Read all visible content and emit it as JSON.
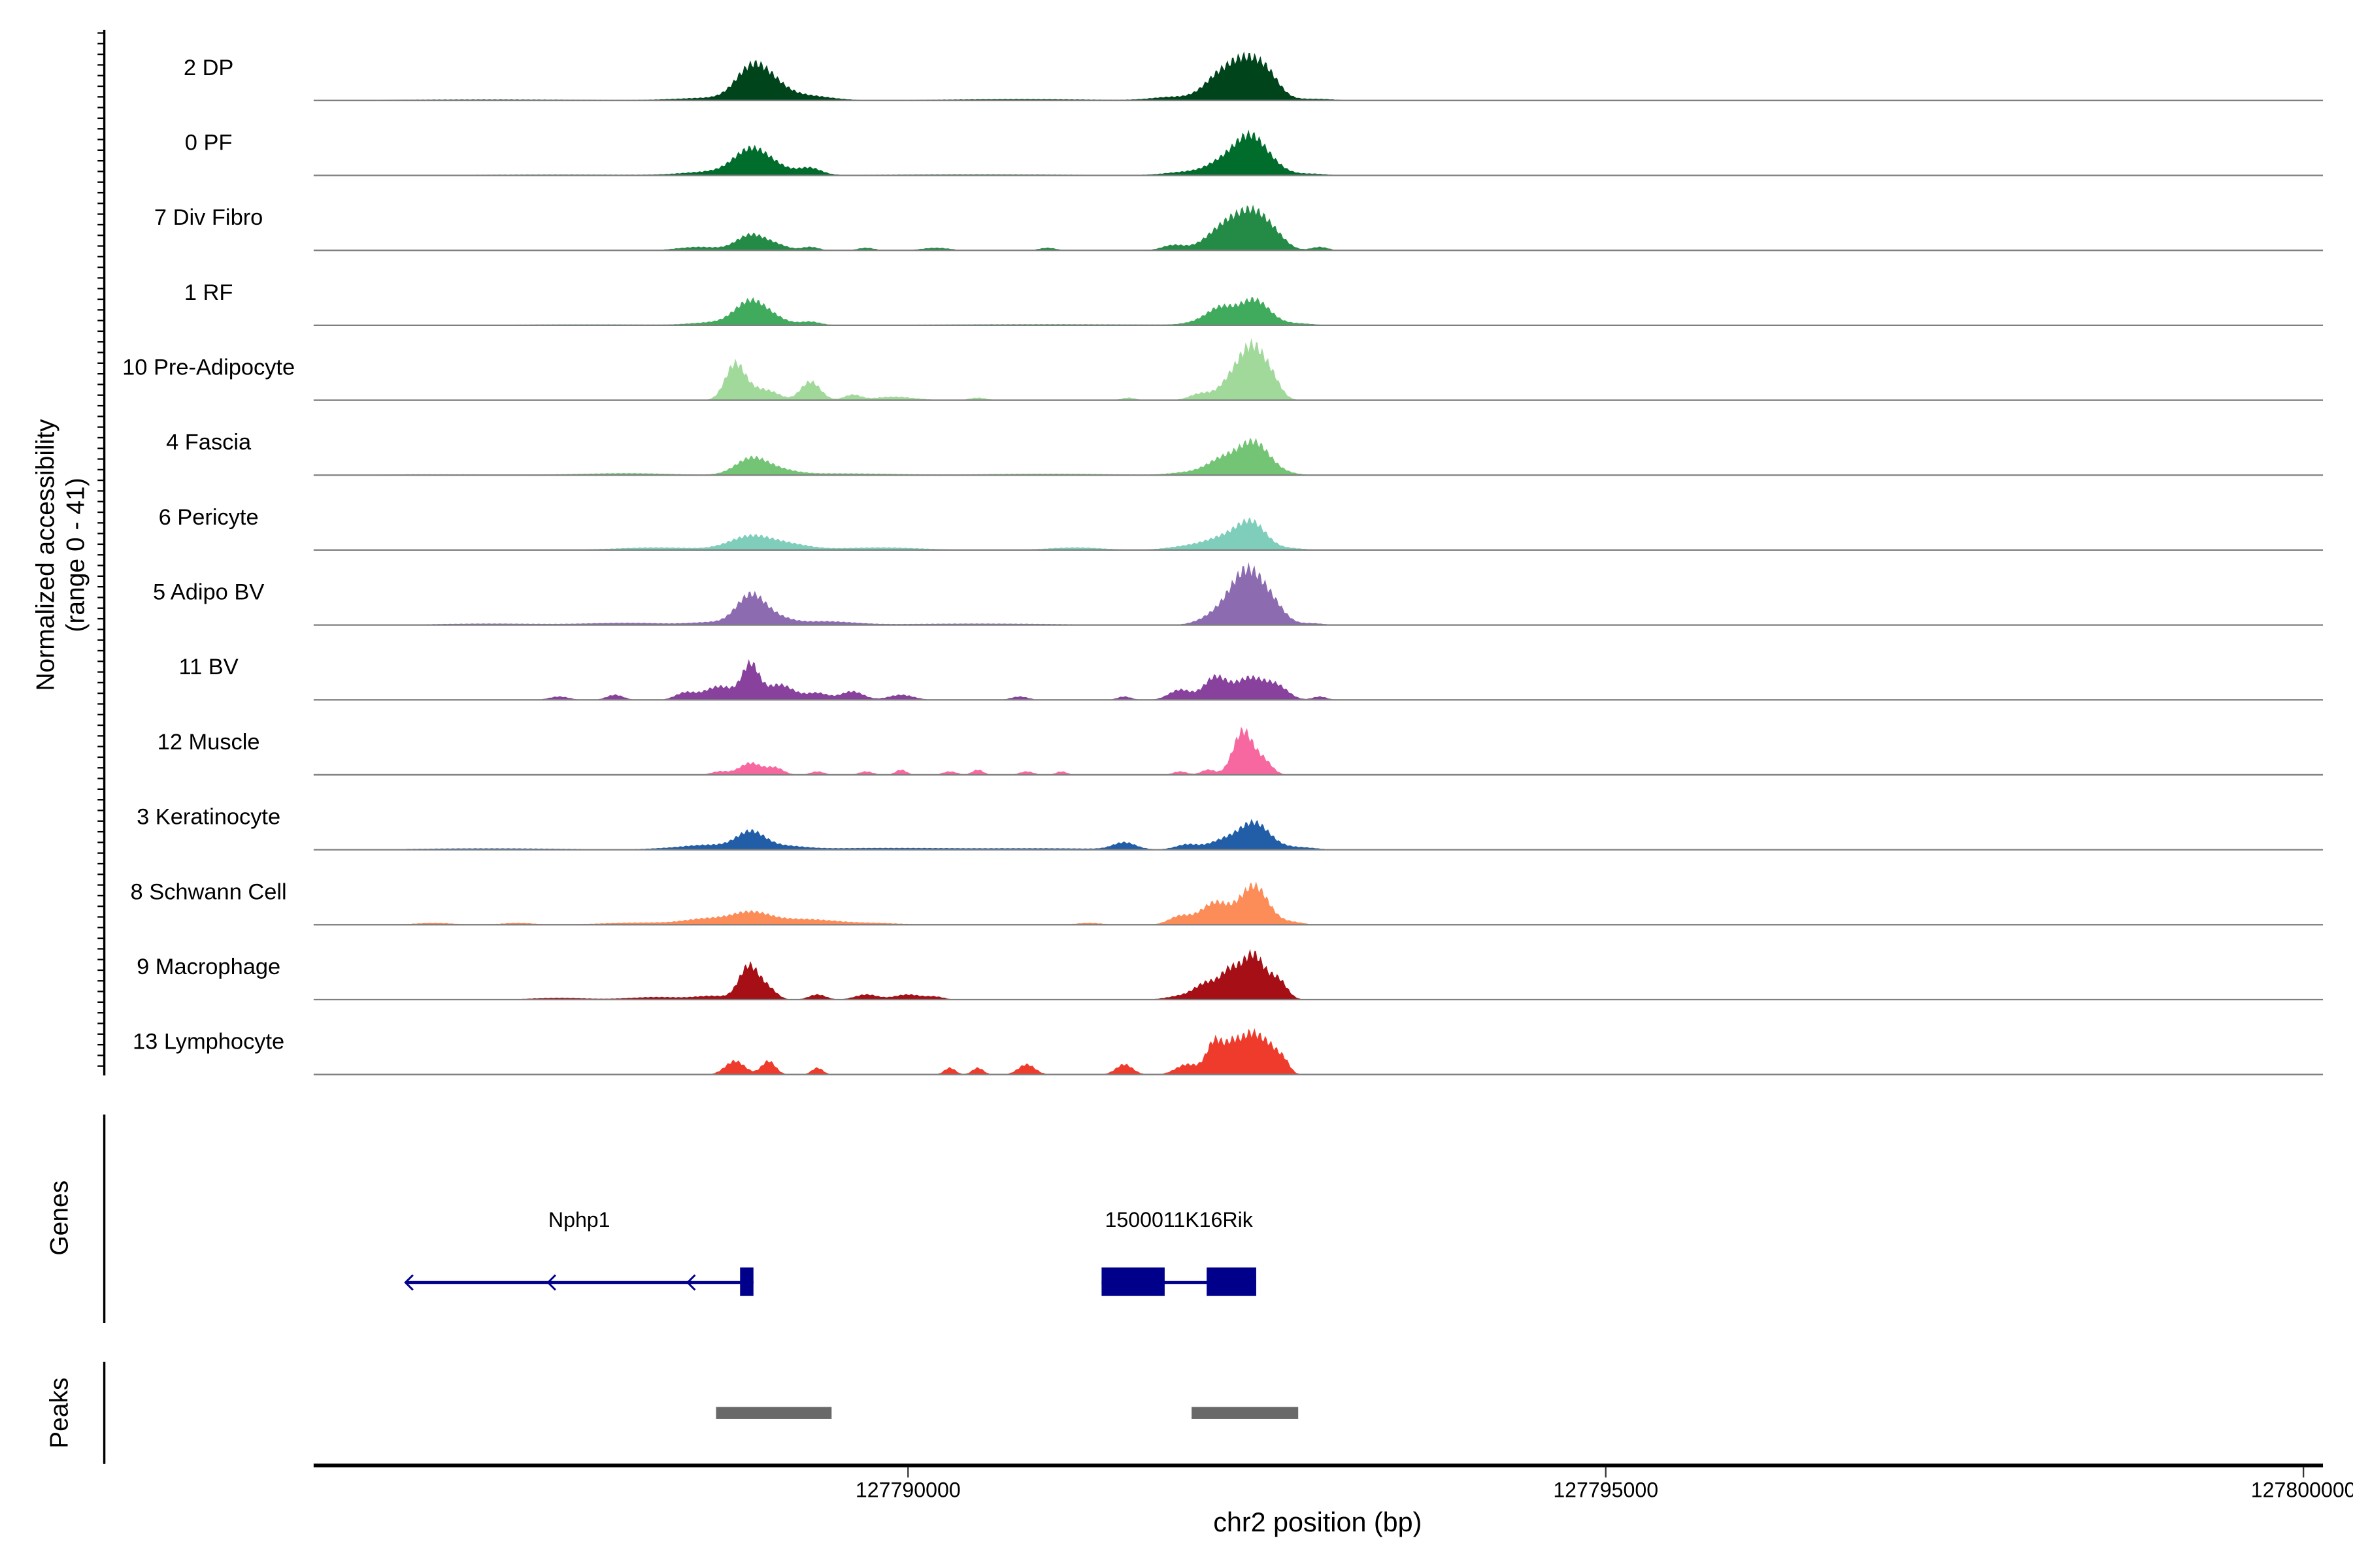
{
  "chart_data": {
    "type": "area",
    "title": "",
    "ylabel_line1": "Normalized accessibility",
    "ylabel_line2": "(range 0 - 41)",
    "xlabel": "chr2 position (bp)",
    "ylim": [
      0,
      41
    ],
    "xlim": [
      127785740,
      127800140
    ],
    "x_ticks": [
      127790000,
      127795000,
      127800000
    ],
    "x_tick_labels": [
      "127790000",
      "127795000",
      "127800000"
    ],
    "grid": false,
    "tracks": [
      {
        "name": "2 DP",
        "color": "#00441b",
        "peaks": [
          [
            127787000,
            0.6,
            800
          ],
          [
            127788600,
            1.5,
            250
          ],
          [
            127788871,
            17,
            110
          ],
          [
            127789020,
            8,
            110
          ],
          [
            127789250,
            3,
            180
          ],
          [
            127790800,
            0.8,
            600
          ],
          [
            127791900,
            2,
            150
          ],
          [
            127792226,
            13,
            110
          ],
          [
            127792420,
            21,
            110
          ],
          [
            127792580,
            12,
            90
          ],
          [
            127792900,
            1,
            150
          ]
        ]
      },
      {
        "name": "0 PF",
        "color": "#006d2c",
        "peaks": [
          [
            127787500,
            0.5,
            800
          ],
          [
            127788600,
            2,
            200
          ],
          [
            127788871,
            14,
            120
          ],
          [
            127789050,
            4,
            120
          ],
          [
            127789300,
            4,
            80
          ],
          [
            127790500,
            0.6,
            800
          ],
          [
            127792000,
            2,
            150
          ],
          [
            127792250,
            7,
            110
          ],
          [
            127792450,
            22,
            110
          ],
          [
            127792620,
            4,
            100
          ],
          [
            127792900,
            1,
            100
          ]
        ]
      },
      {
        "name": "7 Div Fibro",
        "color": "#238b45",
        "peaks": [
          [
            127788500,
            2,
            150
          ],
          [
            127788871,
            9,
            100
          ],
          [
            127789050,
            3,
            90
          ],
          [
            127789300,
            2,
            60
          ],
          [
            127789700,
            1.5,
            60
          ],
          [
            127790200,
            1.5,
            100
          ],
          [
            127791000,
            1.5,
            60
          ],
          [
            127791900,
            3,
            80
          ],
          [
            127792300,
            16,
            140
          ],
          [
            127792500,
            17,
            110
          ],
          [
            127792650,
            4,
            80
          ],
          [
            127792950,
            2,
            60
          ]
        ]
      },
      {
        "name": "1 RF",
        "color": "#41ab5d",
        "peaks": [
          [
            127787700,
            0.5,
            600
          ],
          [
            127788600,
            1.5,
            150
          ],
          [
            127788871,
            14,
            110
          ],
          [
            127789050,
            3,
            100
          ],
          [
            127789300,
            2,
            70
          ],
          [
            127791000,
            0.6,
            900
          ],
          [
            127792100,
            2,
            100
          ],
          [
            127792240,
            9,
            90
          ],
          [
            127792480,
            15,
            110
          ],
          [
            127792800,
            1,
            100
          ]
        ]
      },
      {
        "name": "10 Pre-Adipocyte",
        "color": "#a1d99b",
        "peaks": [
          [
            127788760,
            21,
            70
          ],
          [
            127788930,
            6,
            90
          ],
          [
            127789050,
            2,
            60
          ],
          [
            127789301,
            11,
            70
          ],
          [
            127789600,
            3,
            60
          ],
          [
            127789900,
            2,
            150
          ],
          [
            127790500,
            1.5,
            60
          ],
          [
            127791580,
            1.5,
            50
          ],
          [
            127792100,
            4,
            80
          ],
          [
            127792300,
            8,
            80
          ],
          [
            127792470,
            32,
            100
          ],
          [
            127792620,
            6,
            60
          ]
        ]
      },
      {
        "name": "4 Fascia",
        "color": "#74c476",
        "peaks": [
          [
            127786500,
            0.5,
            900
          ],
          [
            127788000,
            1,
            300
          ],
          [
            127788871,
            9,
            110
          ],
          [
            127789050,
            3,
            130
          ],
          [
            127789500,
            1,
            400
          ],
          [
            127791000,
            0.8,
            500
          ],
          [
            127792000,
            1.5,
            120
          ],
          [
            127792250,
            9,
            110
          ],
          [
            127792480,
            19,
            110
          ],
          [
            127792700,
            1,
            100
          ]
        ]
      },
      {
        "name": "6 Pericyte",
        "color": "#7fcdbb",
        "peaks": [
          [
            127788200,
            1.5,
            300
          ],
          [
            127788871,
            8,
            150
          ],
          [
            127789150,
            3,
            150
          ],
          [
            127789800,
            1.5,
            300
          ],
          [
            127791200,
            1.5,
            200
          ],
          [
            127792000,
            2,
            150
          ],
          [
            127792300,
            8,
            150
          ],
          [
            127792470,
            13,
            100
          ],
          [
            127792750,
            1,
            100
          ]
        ]
      },
      {
        "name": "5 Adipo BV",
        "color": "#8c6bb1",
        "peaks": [
          [
            127787000,
            0.8,
            400
          ],
          [
            127788000,
            1.2,
            300
          ],
          [
            127788600,
            1.5,
            150
          ],
          [
            127788871,
            17,
            100
          ],
          [
            127789050,
            4,
            110
          ],
          [
            127789400,
            2,
            200
          ],
          [
            127790500,
            0.8,
            600
          ],
          [
            127792200,
            5,
            110
          ],
          [
            127792430,
            32,
            120
          ],
          [
            127792620,
            8,
            90
          ],
          [
            127792900,
            1,
            80
          ]
        ]
      },
      {
        "name": "11 BV",
        "color": "#88419d",
        "peaks": [
          [
            127787500,
            2,
            70
          ],
          [
            127787900,
            3,
            60
          ],
          [
            127788400,
            4,
            70
          ],
          [
            127788650,
            8,
            110
          ],
          [
            127788871,
            20,
            60
          ],
          [
            127789080,
            9,
            100
          ],
          [
            127789350,
            4,
            80
          ],
          [
            127789600,
            5,
            80
          ],
          [
            127789950,
            3,
            90
          ],
          [
            127790800,
            2,
            60
          ],
          [
            127791550,
            2,
            50
          ],
          [
            127791950,
            6,
            80
          ],
          [
            127792200,
            13,
            80
          ],
          [
            127792450,
            13,
            110
          ],
          [
            127792650,
            7,
            80
          ],
          [
            127792950,
            2,
            50
          ]
        ]
      },
      {
        "name": "12 Muscle",
        "color": "#f768a1",
        "peaks": [
          [
            127788650,
            2,
            60
          ],
          [
            127788871,
            7,
            80
          ],
          [
            127789050,
            4,
            60
          ],
          [
            127789350,
            2,
            50
          ],
          [
            127789700,
            2,
            50
          ],
          [
            127789950,
            3,
            40
          ],
          [
            127790300,
            2,
            50
          ],
          [
            127790500,
            3,
            40
          ],
          [
            127790850,
            2,
            50
          ],
          [
            127791100,
            2,
            40
          ],
          [
            127791950,
            2,
            50
          ],
          [
            127792150,
            3,
            50
          ],
          [
            127792400,
            26,
            70
          ],
          [
            127792550,
            8,
            60
          ]
        ]
      },
      {
        "name": "3 Keratinocyte",
        "color": "#225ea8",
        "peaks": [
          [
            127787000,
            0.8,
            600
          ],
          [
            127788400,
            1.2,
            200
          ],
          [
            127788600,
            2,
            150
          ],
          [
            127788871,
            10,
            100
          ],
          [
            127789100,
            2,
            150
          ],
          [
            127789800,
            1,
            500
          ],
          [
            127791000,
            0.8,
            500
          ],
          [
            127791550,
            4,
            80
          ],
          [
            127792000,
            3,
            80
          ],
          [
            127792250,
            5,
            100
          ],
          [
            127792480,
            16,
            110
          ],
          [
            127792800,
            1.5,
            120
          ]
        ]
      },
      {
        "name": "8 Schwann Cell",
        "color": "#fc8d59",
        "peaks": [
          [
            127786600,
            1,
            150
          ],
          [
            127787200,
            1,
            120
          ],
          [
            127788100,
            1.2,
            300
          ],
          [
            127788550,
            3,
            150
          ],
          [
            127788871,
            7,
            140
          ],
          [
            127789250,
            3,
            200
          ],
          [
            127789700,
            1,
            250
          ],
          [
            127791300,
            1,
            100
          ],
          [
            127791950,
            5,
            80
          ],
          [
            127792200,
            13,
            100
          ],
          [
            127792480,
            23,
            100
          ],
          [
            127792750,
            1.5,
            80
          ]
        ]
      },
      {
        "name": "9 Macrophage",
        "color": "#a50f15",
        "peaks": [
          [
            127787500,
            1,
            200
          ],
          [
            127788200,
            1.5,
            200
          ],
          [
            127788600,
            2,
            120
          ],
          [
            127788860,
            20,
            70
          ],
          [
            127789000,
            6,
            60
          ],
          [
            127789350,
            3,
            60
          ],
          [
            127789700,
            3,
            80
          ],
          [
            127790000,
            3,
            100
          ],
          [
            127790200,
            1.5,
            60
          ],
          [
            127791950,
            2,
            100
          ],
          [
            127792150,
            10,
            90
          ],
          [
            127792300,
            12,
            60
          ],
          [
            127792470,
            27,
            90
          ],
          [
            127792660,
            10,
            60
          ]
        ]
      },
      {
        "name": "13 Lymphocyte",
        "color": "#ef3b2c",
        "peaks": [
          [
            127788760,
            8,
            70
          ],
          [
            127789000,
            8,
            50
          ],
          [
            127789350,
            4,
            40
          ],
          [
            127790300,
            4,
            40
          ],
          [
            127790500,
            4,
            40
          ],
          [
            127790850,
            6,
            60
          ],
          [
            127791550,
            6,
            60
          ],
          [
            127792000,
            6,
            80
          ],
          [
            127792200,
            20,
            60
          ],
          [
            127792320,
            12,
            50
          ],
          [
            127792450,
            23,
            80
          ],
          [
            127792600,
            14,
            70
          ],
          [
            127792700,
            5,
            40
          ]
        ]
      }
    ],
    "genes": {
      "axis_label": "Genes",
      "items": [
        {
          "name": "Nphp1",
          "strand": "-",
          "start": 127786398,
          "end": 127788892,
          "exons": [
            [
              127788796,
              127788892
            ]
          ],
          "color": "#00008b"
        },
        {
          "name": "1500011K16Rik",
          "strand": "+",
          "start": 127791387,
          "end": 127792495,
          "exons": [
            [
              127791387,
              127791839
            ],
            [
              127792140,
              127792495
            ]
          ],
          "color": "#00008b"
        }
      ]
    },
    "peaks": {
      "axis_label": "Peaks",
      "color": "#696969",
      "regions": [
        [
          127788624,
          127789452
        ],
        [
          127792032,
          127792796
        ]
      ]
    }
  }
}
